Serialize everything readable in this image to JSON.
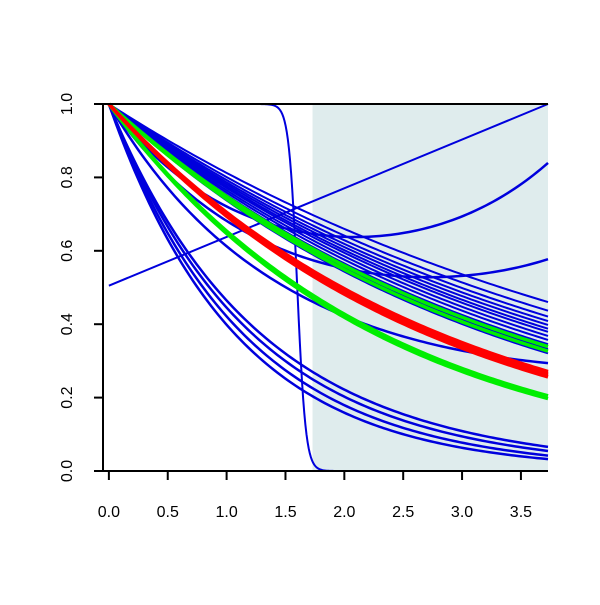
{
  "chart_data": {
    "type": "line",
    "title": "",
    "xlabel": "",
    "ylabel": "",
    "xlim": [
      -0.05,
      3.73
    ],
    "ylim": [
      0,
      1
    ],
    "x_ticks": [
      0.0,
      0.5,
      1.0,
      1.5,
      2.0,
      2.5,
      3.0,
      3.5
    ],
    "x_tick_labels": [
      "0.0",
      "0.5",
      "1.0",
      "1.5",
      "2.0",
      "2.5",
      "3.0",
      "3.5"
    ],
    "y_ticks": [
      0.0,
      0.2,
      0.4,
      0.6,
      0.8,
      1.0
    ],
    "y_tick_labels": [
      "0.0",
      "0.2",
      "0.4",
      "0.6",
      "0.8",
      "1.0"
    ],
    "grid": false,
    "legend": "none",
    "shaded_region": {
      "x_from": 1.73,
      "x_to": 3.73,
      "y_from": 0,
      "y_to": 1,
      "color": "#dfeced"
    },
    "colors": {
      "blue": "#0000dd",
      "red": "#ff0000",
      "green": "#00ee00",
      "axis": "#000000"
    },
    "curves": {
      "blue_exponential_decay_rates": [
        0.208,
        0.222,
        0.232,
        0.24,
        0.247,
        0.254,
        0.26,
        0.268,
        0.276,
        0.285,
        0.295,
        0.305
      ],
      "blue_quadratic_curves": [
        {
          "a": 0.92,
          "b": 0.0
        },
        {
          "a": 0.87,
          "b": 0.02
        },
        {
          "a": 0.82,
          "b": 0.04
        },
        {
          "a": 0.78,
          "b": 0.05
        },
        {
          "a": 0.55,
          "b": 0.22
        },
        {
          "a": 0.47,
          "b": 0.32
        },
        {
          "a": 0.43,
          "b": 0.38
        }
      ],
      "blue_line": {
        "x": [
          0.0,
          3.73
        ],
        "y": [
          0.505,
          1.0
        ]
      },
      "blue_step": {
        "midpoint": 1.6,
        "steepness": 28,
        "level": 1.0
      },
      "red_decay_rates": [
        0.35,
        0.355,
        0.36,
        0.365
      ],
      "green_decay_rates": [
        0.29,
        0.3,
        0.425,
        0.435
      ]
    }
  }
}
